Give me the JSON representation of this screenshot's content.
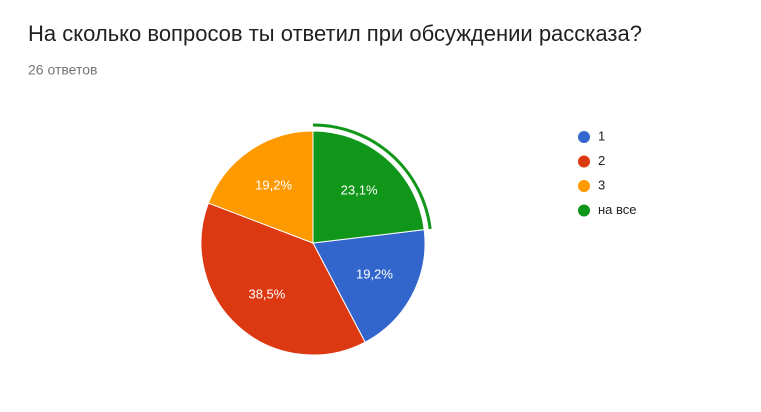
{
  "chart_data": {
    "type": "pie",
    "title": "На сколько вопросов ты ответил при обсуждении рассказа?",
    "subtitle": "26 ответов",
    "categories": [
      "1",
      "2",
      "3",
      "на все"
    ],
    "values": [
      19.2,
      38.5,
      19.2,
      23.1
    ],
    "value_labels": [
      "19,2%",
      "38,5%",
      "19,2%",
      "23,1%"
    ],
    "colors": [
      "#3366cc",
      "#dc3912",
      "#ff9900",
      "#109618"
    ],
    "legend": "right"
  }
}
